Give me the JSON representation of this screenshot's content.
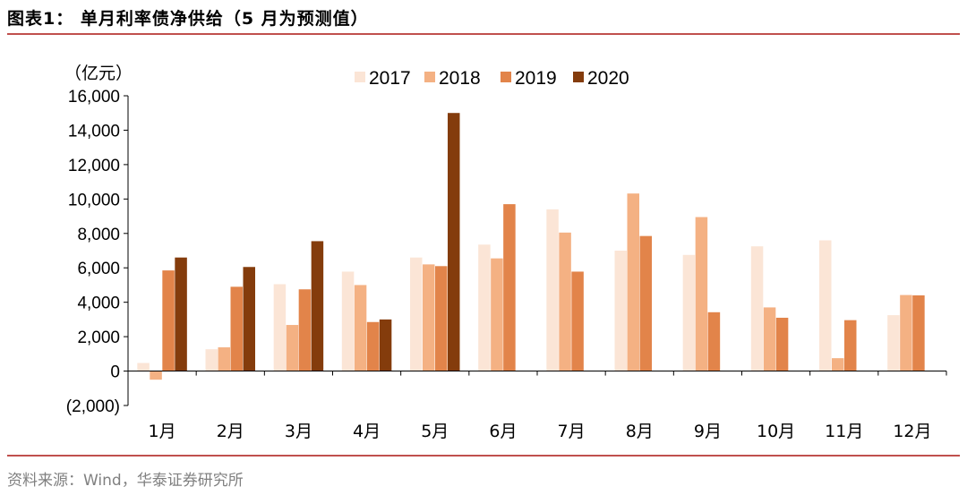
{
  "figure": {
    "title": "图表1：  单月利率债净供给（5 月为预测值）",
    "source": "资料来源：Wind，华泰证券研究所"
  },
  "chart_data": {
    "type": "bar",
    "unit_label": "（亿元）",
    "categories": [
      "1月",
      "2月",
      "3月",
      "4月",
      "5月",
      "6月",
      "7月",
      "8月",
      "9月",
      "10月",
      "11月",
      "12月"
    ],
    "series": [
      {
        "name": "2017",
        "color": "#FBE5D6",
        "values": [
          470,
          1270,
          5050,
          5780,
          6600,
          7350,
          9400,
          7000,
          6750,
          7250,
          7600,
          3250
        ]
      },
      {
        "name": "2018",
        "color": "#F4B183",
        "values": [
          -500,
          1380,
          2680,
          5000,
          6200,
          6550,
          8050,
          10320,
          8950,
          3700,
          750,
          4420
        ]
      },
      {
        "name": "2019",
        "color": "#E2844A",
        "values": [
          5850,
          4900,
          4750,
          2850,
          6100,
          9700,
          5780,
          7850,
          3420,
          3100,
          2960,
          4400
        ]
      },
      {
        "name": "2020",
        "color": "#843C0C",
        "values": [
          6600,
          6050,
          7550,
          3000,
          15000,
          null,
          null,
          null,
          null,
          null,
          null,
          null
        ]
      }
    ],
    "ylim": [
      -2000,
      16000
    ],
    "yticks": [
      -2000,
      0,
      2000,
      4000,
      6000,
      8000,
      10000,
      12000,
      14000,
      16000
    ],
    "ytick_labels": [
      "(2,000)",
      "0",
      "2,000",
      "4,000",
      "6,000",
      "8,000",
      "10,000",
      "12,000",
      "14,000",
      "16,000"
    ],
    "legend_position": "top-center",
    "grid": false
  }
}
